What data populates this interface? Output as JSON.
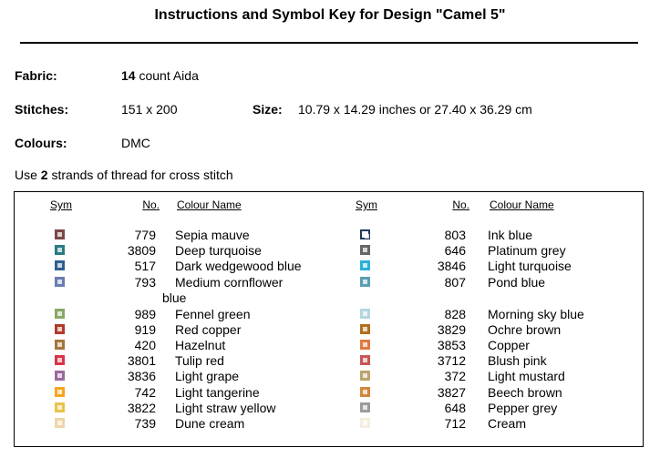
{
  "header": {
    "title": "Instructions and Symbol Key for Design \"Camel 5\""
  },
  "fields": {
    "fabric": {
      "label": "Fabric:",
      "bold": "14",
      "value": "count Aida"
    },
    "stitches": {
      "label": "Stitches:",
      "value": "151 x 200"
    },
    "size": {
      "label": "Size:",
      "value": "10.79 x 14.29 inches or 27.40 x 36.29 cm"
    },
    "colours": {
      "label": "Colours:",
      "value": "DMC"
    }
  },
  "instruction": {
    "before": "Use",
    "bold": "2",
    "after": "strands of thread for cross stitch"
  },
  "table": {
    "columns": [
      "Sym",
      "No.",
      "Colour Name"
    ],
    "left": [
      {
        "no": 779,
        "name": "Sepia mauve",
        "color": "#7a4646"
      },
      {
        "no": 3809,
        "name": "Deep turquoise",
        "color": "#2a7a80"
      },
      {
        "no": 517,
        "name": "Dark wedgewood blue",
        "color": "#2d5f90"
      },
      {
        "no": 793,
        "name": "Medium cornflower blue",
        "color": "#6a7cb0"
      },
      {
        "no": 989,
        "name": "Fennel green",
        "color": "#86a866"
      },
      {
        "no": 919,
        "name": "Red copper",
        "color": "#b03a2a"
      },
      {
        "no": 420,
        "name": "Hazelnut",
        "color": "#a5763a"
      },
      {
        "no": 3801,
        "name": "Tulip red",
        "color": "#d8344a"
      },
      {
        "no": 3836,
        "name": "Light grape",
        "color": "#9a6a9c"
      },
      {
        "no": 742,
        "name": "Light tangerine",
        "color": "#f5a623"
      },
      {
        "no": 3822,
        "name": "Light straw yellow",
        "color": "#e8c44a"
      },
      {
        "no": 739,
        "name": "Dune cream",
        "color": "#f0d4aa"
      }
    ],
    "right": [
      {
        "no": 803,
        "name": "Ink blue",
        "color": "#1f3a5a"
      },
      {
        "no": 646,
        "name": "Platinum grey",
        "color": "#666666"
      },
      {
        "no": 3846,
        "name": "Light turquoise",
        "color": "#2ab0d8"
      },
      {
        "no": 807,
        "name": "Pond blue",
        "color": "#5a9eb0"
      },
      {
        "no": 828,
        "name": "Morning sky blue",
        "color": "#b4d6e0"
      },
      {
        "no": 3829,
        "name": "Ochre brown",
        "color": "#b06e20"
      },
      {
        "no": 3853,
        "name": "Copper",
        "color": "#e07a40"
      },
      {
        "no": 3712,
        "name": "Blush pink",
        "color": "#c85656"
      },
      {
        "no": 372,
        "name": "Light mustard",
        "color": "#bca46c"
      },
      {
        "no": 3827,
        "name": "Beech brown",
        "color": "#d0883a"
      },
      {
        "no": 648,
        "name": "Pepper grey",
        "color": "#9c9c9c"
      },
      {
        "no": 712,
        "name": "Cream",
        "color": "#f3eedd"
      }
    ]
  }
}
